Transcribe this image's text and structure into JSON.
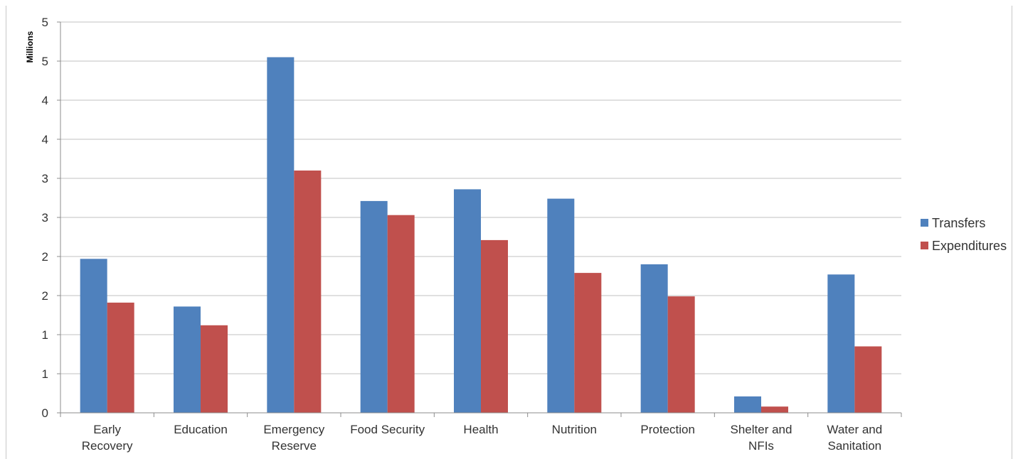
{
  "chart_data": {
    "type": "bar",
    "title": "",
    "xlabel": "",
    "ylabel": "Millions",
    "ylim": [
      0,
      5
    ],
    "y_tick_labels": [
      "0",
      "1",
      "1",
      "2",
      "2",
      "3",
      "3",
      "4",
      "4",
      "5",
      "5"
    ],
    "y_tick_values": [
      0,
      0.5,
      1,
      1.5,
      2,
      2.5,
      3,
      3.5,
      4,
      4.5,
      5
    ],
    "grid": true,
    "legend_position": "right",
    "categories": [
      [
        "Early",
        "Recovery"
      ],
      [
        "Education"
      ],
      [
        "Emergency",
        "Reserve"
      ],
      [
        "Food Security"
      ],
      [
        "Health"
      ],
      [
        "Nutrition"
      ],
      [
        "Protection"
      ],
      [
        "Shelter and",
        "NFIs"
      ],
      [
        "Water and",
        "Sanitation"
      ]
    ],
    "series": [
      {
        "name": "Transfers",
        "color": "#4F81BD",
        "values": [
          1.97,
          1.36,
          4.55,
          2.71,
          2.86,
          2.74,
          1.9,
          0.21,
          1.77
        ]
      },
      {
        "name": "Expenditures",
        "color": "#C0504D",
        "values": [
          1.41,
          1.12,
          3.1,
          2.53,
          2.21,
          1.79,
          1.49,
          0.08,
          0.85
        ]
      }
    ]
  }
}
